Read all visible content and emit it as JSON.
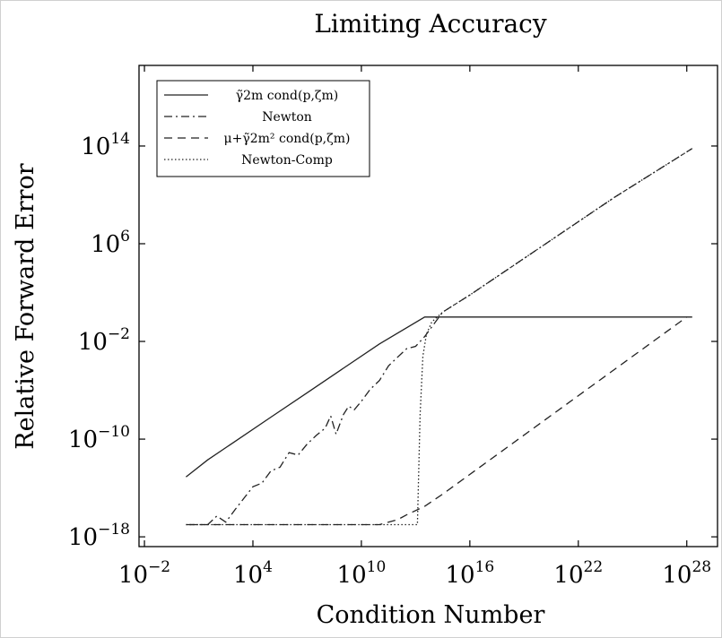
{
  "chart_data": {
    "type": "line",
    "title": "Limiting Accuracy",
    "xlabel": "Condition Number",
    "ylabel": "Relative Forward Error",
    "x_scale": "log",
    "y_scale": "log",
    "xlim_exp": [
      -2.3,
      29.7
    ],
    "ylim_exp": [
      -18.8,
      20.6
    ],
    "x_ticks": [
      {
        "base": "10",
        "exp": "−2",
        "value": -2
      },
      {
        "base": "10",
        "exp": "4",
        "value": 4
      },
      {
        "base": "10",
        "exp": "10",
        "value": 10
      },
      {
        "base": "10",
        "exp": "16",
        "value": 16
      },
      {
        "base": "10",
        "exp": "22",
        "value": 22
      },
      {
        "base": "10",
        "exp": "28",
        "value": 28
      }
    ],
    "y_ticks": [
      {
        "base": "10",
        "exp": "14",
        "value": 14
      },
      {
        "base": "10",
        "exp": "6",
        "value": 6
      },
      {
        "base": "10",
        "exp": "−2",
        "value": -2
      },
      {
        "base": "10",
        "exp": "−10",
        "value": -10
      },
      {
        "base": "10",
        "exp": "−18",
        "value": -18
      }
    ],
    "legend_position": "top-left",
    "series": [
      {
        "name": "γ̃2m cond(p,ζm)",
        "style": "solid",
        "x_log10": [
          0.3,
          1.5,
          3,
          5,
          7,
          9,
          11,
          13.5,
          28.3
        ],
        "y_log10": [
          -13.1,
          -11.7,
          -10.2,
          -8.2,
          -6.2,
          -4.2,
          -2.2,
          0.0,
          0.0
        ]
      },
      {
        "name": "Newton",
        "style": "dashdot",
        "x_log10": [
          0.5,
          1.5,
          2.0,
          2.5,
          3.0,
          4.0,
          4.5,
          5.0,
          5.5,
          6.0,
          6.5,
          7.0,
          7.5,
          8.0,
          8.3,
          8.6,
          9.0,
          9.3,
          9.6,
          10.0,
          10.5,
          11.0,
          11.5,
          12.0,
          12.5,
          13.0,
          13.5,
          14.5,
          16,
          20,
          24,
          28.3
        ],
        "y_log10": [
          -17.0,
          -17.0,
          -16.3,
          -16.8,
          -15.8,
          -13.9,
          -13.6,
          -12.6,
          -12.3,
          -11.1,
          -11.3,
          -10.4,
          -9.7,
          -9.1,
          -8.1,
          -9.6,
          -8.0,
          -7.3,
          -7.6,
          -6.9,
          -5.9,
          -5.2,
          -4.0,
          -3.3,
          -2.6,
          -2.4,
          -1.6,
          0.4,
          1.8,
          5.8,
          9.8,
          13.8
        ]
      },
      {
        "name": "μ+γ̃2m² cond(p,ζm)",
        "style": "dashed",
        "x_log10": [
          0.3,
          11.0,
          12.0,
          12.5,
          13.5,
          14.5,
          28.0
        ],
        "y_log10": [
          -17.0,
          -17.0,
          -16.6,
          -16.2,
          -15.5,
          -14.5,
          0.0
        ]
      },
      {
        "name": "Newton-Comp",
        "style": "dotted",
        "x_log10": [
          0.3,
          13.1,
          13.25,
          13.4,
          13.6,
          13.9,
          14.5,
          16,
          20,
          24,
          28.3
        ],
        "y_log10": [
          -17.0,
          -17.0,
          -8.0,
          -3.2,
          -1.4,
          -0.4,
          0.4,
          1.8,
          5.8,
          9.8,
          13.8
        ]
      }
    ]
  }
}
